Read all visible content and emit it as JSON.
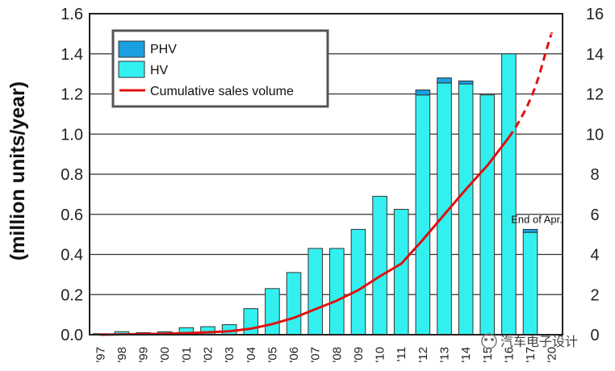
{
  "chart_data": {
    "type": "bar",
    "ylabel": "(million units/year)",
    "ylim": [
      0,
      1.6
    ],
    "y_ticks": [
      "0.0",
      "0.2",
      "0.4",
      "0.6",
      "0.8",
      "1.0",
      "1.2",
      "1.4",
      "1.6"
    ],
    "y2lim": [
      0,
      16
    ],
    "y2_ticks": [
      "0",
      "2",
      "4",
      "6",
      "8",
      "10",
      "12",
      "14",
      "16"
    ],
    "grid": true,
    "categories": [
      "'97",
      "'98",
      "'99",
      "'00",
      "'01",
      "'02",
      "'03",
      "'04",
      "'05",
      "'06",
      "'07",
      "'08",
      "'09",
      "'10",
      "'11",
      "'12",
      "'13",
      "'14",
      "'15",
      "'16",
      "'17",
      "'20"
    ],
    "series": [
      {
        "name": "HV",
        "color": "#33f0f0",
        "values": [
          0.005,
          0.015,
          0.01,
          0.015,
          0.035,
          0.04,
          0.05,
          0.13,
          0.23,
          0.31,
          0.43,
          0.43,
          0.525,
          0.69,
          0.625,
          1.195,
          1.255,
          1.25,
          1.195,
          1.4,
          0.51,
          0
        ]
      },
      {
        "name": "PHV",
        "color": "#1aa0e0",
        "values": [
          0,
          0,
          0,
          0,
          0,
          0,
          0,
          0,
          0,
          0,
          0,
          0,
          0,
          0,
          0,
          0.025,
          0.025,
          0.015,
          0,
          0,
          0.015,
          0
        ]
      }
    ],
    "line": {
      "name": "Cumulative sales volume",
      "color": "#e01010",
      "actual_x": [
        "'97",
        "'98",
        "'99",
        "'00",
        "'01",
        "'02",
        "'03",
        "'04",
        "'05",
        "'06",
        "'07",
        "'08",
        "'09",
        "'10",
        "'11",
        "'12",
        "'13",
        "'14",
        "'15",
        "'16"
      ],
      "actual_values": [
        0.0,
        0.02,
        0.03,
        0.05,
        0.08,
        0.12,
        0.17,
        0.3,
        0.53,
        0.84,
        1.27,
        1.7,
        2.22,
        2.91,
        3.54,
        4.73,
        5.99,
        7.24,
        8.43,
        9.83
      ],
      "projected_x": [
        "'16",
        "'17",
        "'20"
      ],
      "projected_values": [
        9.83,
        11.5,
        15.0
      ]
    },
    "legend": [
      "PHV",
      "HV",
      "Cumulative sales volume"
    ],
    "legend_position": "top-left",
    "annotation": {
      "text": "End of Apr.",
      "category": "'17"
    }
  },
  "watermark": "汽车电子设计"
}
